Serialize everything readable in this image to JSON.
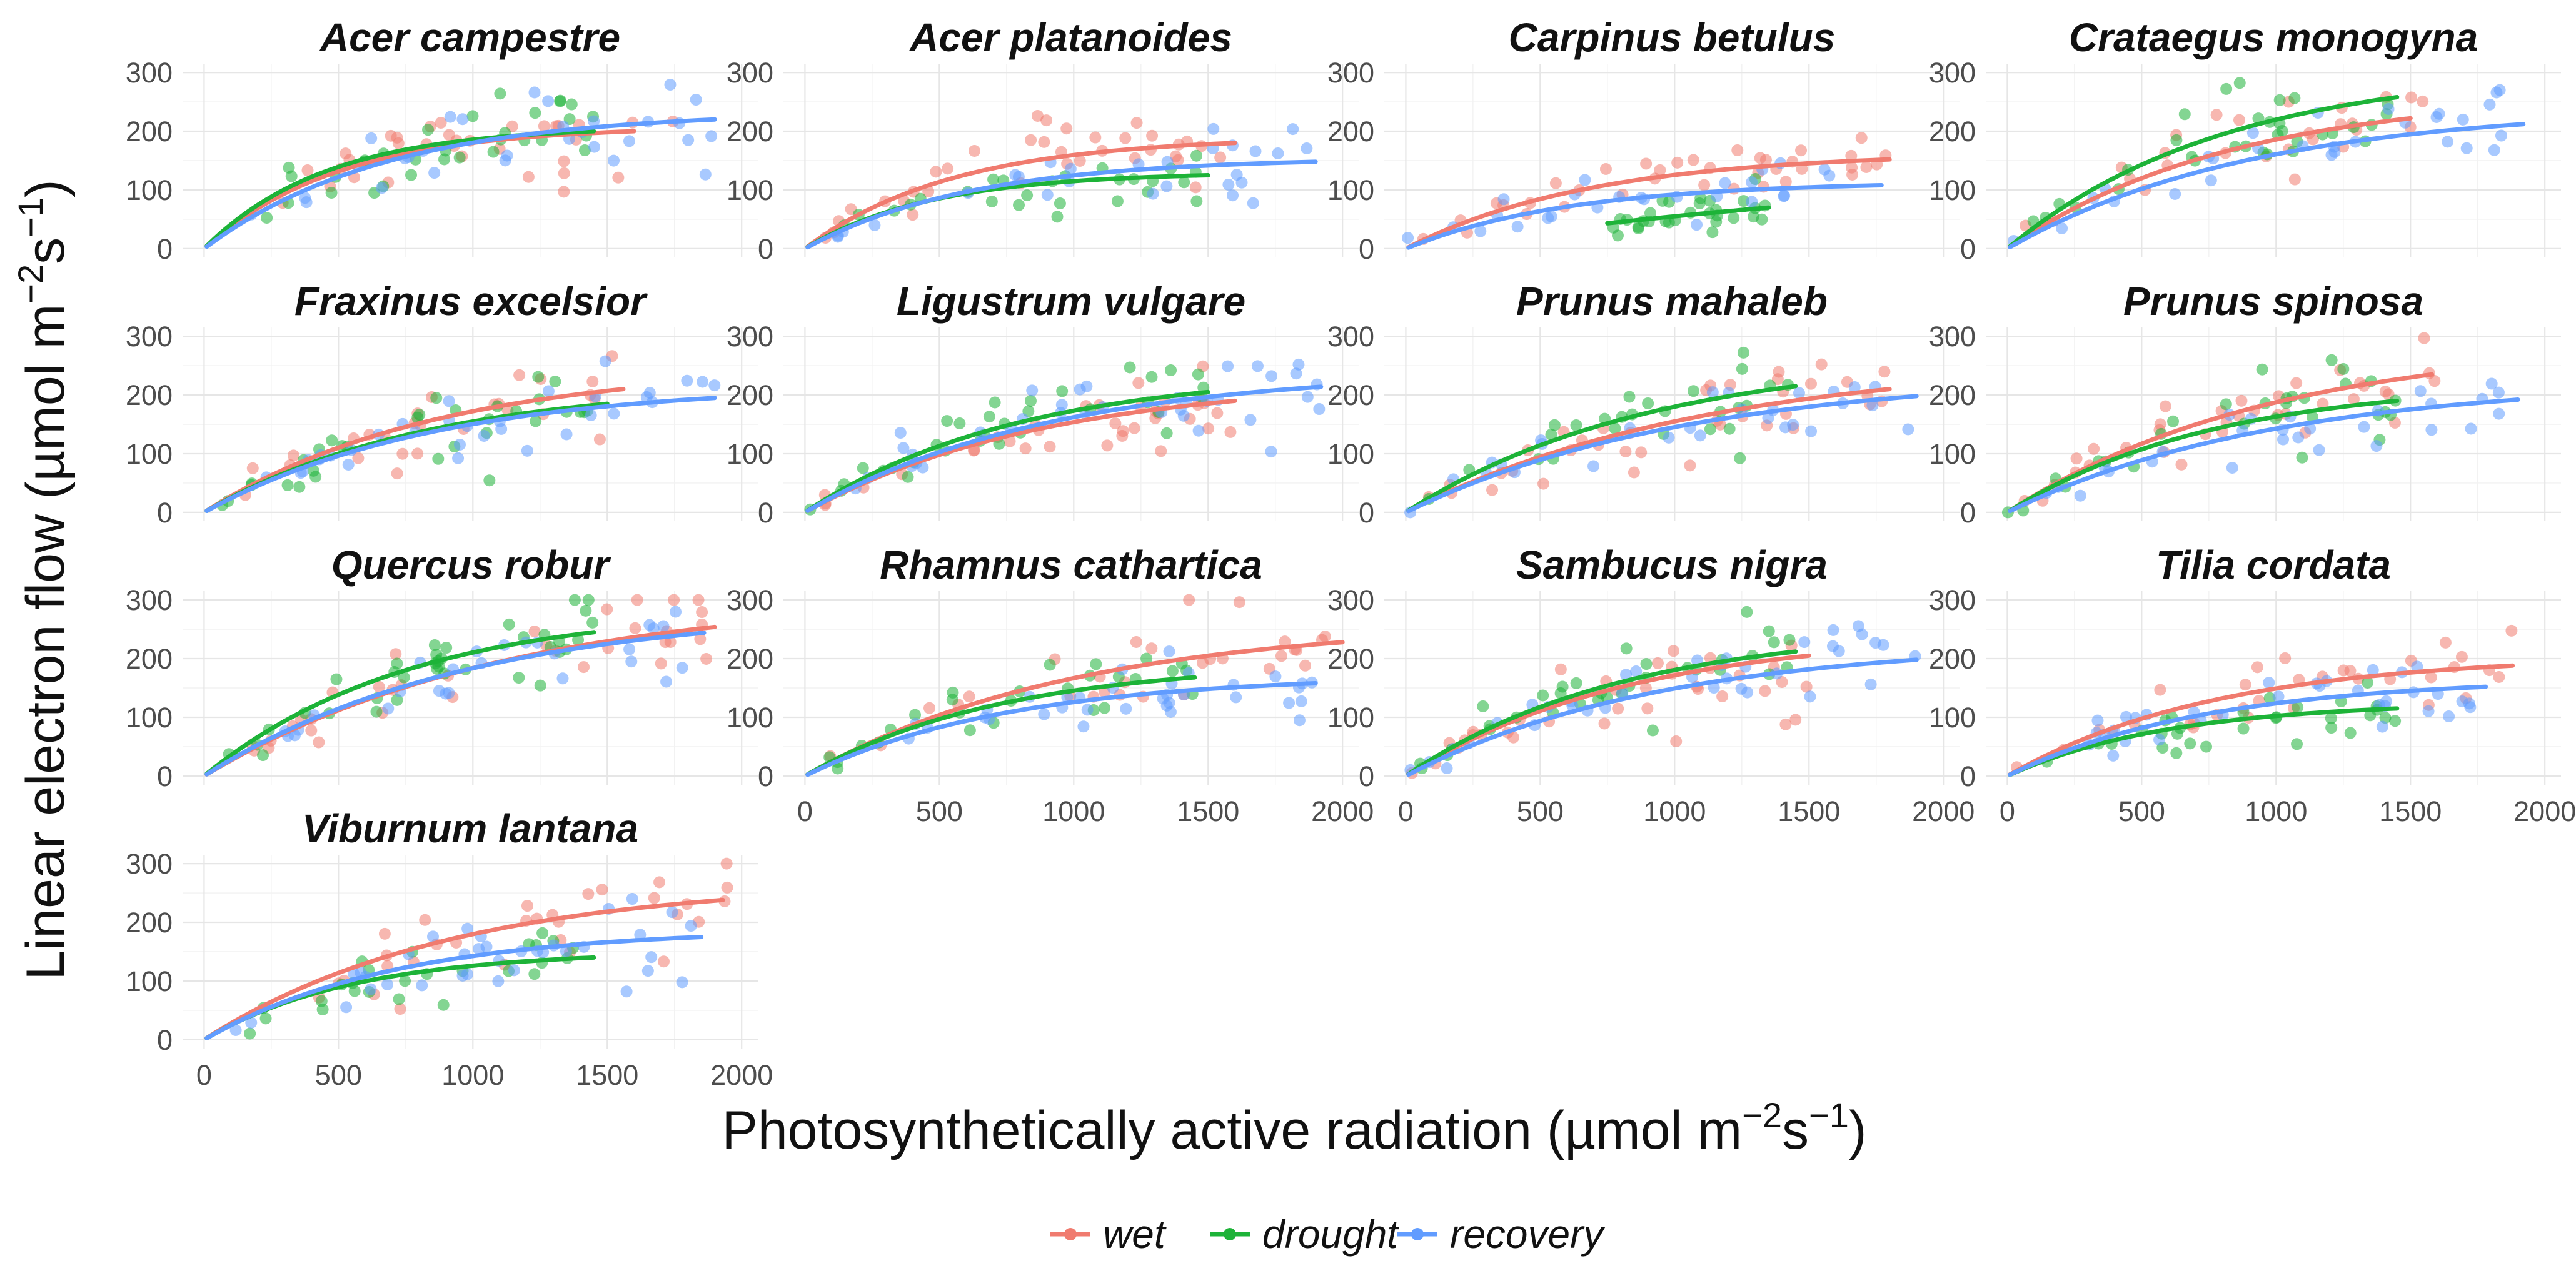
{
  "colors": {
    "wet": "#F07B6F",
    "drought": "#1DB338",
    "recovery": "#619CFF"
  },
  "chart_data": {
    "type": "scatter",
    "subtype": "faceted scatter with fitted light-response curves",
    "facets": [
      "Acer campestre",
      "Acer platanoides",
      "Carpinus betulus",
      "Crataegus monogyna",
      "Fraxinus excelsior",
      "Ligustrum vulgare",
      "Prunus mahaleb",
      "Prunus spinosa",
      "Quercus robur",
      "Rhamnus cathartica",
      "Sambucus nigra",
      "Tilia cordata",
      "Viburnum lantana"
    ],
    "xlabel": "Photosynthetically active radiation (µmol m",
    "xlabel_sup1": "−2",
    "xlabel_mid": "s",
    "xlabel_sup2": "−1",
    "xlabel_end": ")",
    "ylabel": "Linear electron flow (µmol m",
    "ylabel_sup1": "−2",
    "ylabel_mid": "s",
    "ylabel_sup2": "−1",
    "ylabel_end": ")",
    "xlim": [
      -80,
      2060
    ],
    "ylim": [
      -15,
      315
    ],
    "xticks": [
      0,
      500,
      1000,
      1500,
      2000
    ],
    "yticks": [
      0,
      100,
      200,
      300
    ],
    "xtick_labels": [
      "0",
      "500",
      "1000",
      "1500",
      "2000"
    ],
    "ytick_labels": [
      "0",
      "100",
      "200",
      "300"
    ],
    "legend": {
      "position": "bottom",
      "entries": [
        "wet",
        "drought",
        "recovery"
      ]
    },
    "series_curves": {
      "Acer campestre": {
        "wet": [
          200,
          1600,
          3.2
        ],
        "drought": [
          200,
          1450,
          3.2
        ],
        "recovery": [
          220,
          1900,
          2.8
        ]
      },
      "Acer platanoides": {
        "wet": [
          180,
          1600,
          2.9
        ],
        "drought": [
          125,
          1500,
          3.2
        ],
        "recovery": [
          148,
          1900,
          3.1
        ]
      },
      "Carpinus betulus": {
        "wet": [
          152,
          1800,
          2.6
        ],
        "drought": [
          70,
          1350,
          0.5
        ],
        "recovery": [
          108,
          1770,
          2.9
        ]
      },
      "Crataegus monogyna": {
        "wet": [
          222,
          1500,
          1.8
        ],
        "drought": [
          258,
          1450,
          1.8
        ],
        "recovery": [
          212,
          1920,
          2.1
        ]
      },
      "Fraxinus excelsior": {
        "wet": [
          210,
          1560,
          1.8
        ],
        "drought": [
          185,
          1500,
          1.8
        ],
        "recovery": [
          195,
          1900,
          2.2
        ]
      },
      "Ligustrum vulgare": {
        "wet": [
          190,
          1600,
          1.8
        ],
        "drought": [
          205,
          1500,
          1.9
        ],
        "recovery": [
          214,
          1920,
          2.1
        ]
      },
      "Prunus mahaleb": {
        "wet": [
          210,
          1800,
          1.6
        ],
        "drought": [
          215,
          1450,
          1.6
        ],
        "recovery": [
          198,
          1900,
          1.8
        ]
      },
      "Prunus spinosa": {
        "wet": [
          235,
          1580,
          1.6
        ],
        "drought": [
          190,
          1450,
          1.9
        ],
        "recovery": [
          192,
          1900,
          1.9
        ]
      },
      "Quercus robur": {
        "wet": [
          254,
          1900,
          1.7
        ],
        "drought": [
          245,
          1450,
          1.9
        ],
        "recovery": [
          244,
          1860,
          1.9
        ]
      },
      "Rhamnus cathartica": {
        "wet": [
          228,
          2000,
          2.0
        ],
        "drought": [
          168,
          1450,
          2.0
        ],
        "recovery": [
          158,
          1900,
          2.5
        ]
      },
      "Sambucus nigra": {
        "wet": [
          205,
          1500,
          1.8
        ],
        "drought": [
          212,
          1450,
          1.8
        ],
        "recovery": [
          198,
          1900,
          2.0
        ]
      },
      "Tilia cordata": {
        "wet": [
          188,
          1880,
          2.4
        ],
        "drought": [
          115,
          1450,
          2.4
        ],
        "recovery": [
          152,
          1780,
          2.4
        ]
      },
      "Viburnum lantana": {
        "wet": [
          238,
          1930,
          2.1
        ],
        "drought": [
          140,
          1450,
          2.6
        ],
        "recovery": [
          175,
          1850,
          2.6
        ]
      }
    },
    "curve_params_note": "per series: [LEF at end of curve (µmol m-2 s-1), PAR where curve ends, curvature k] with LEF = A(1-exp(-k PAR/xmax))/(1-exp(-k))",
    "scatter_ranges": {
      "Acer campestre": {
        "wet": [
          0,
          1750
        ],
        "drought": [
          0,
          1450
        ],
        "recovery": [
          0,
          1900
        ]
      },
      "Acer platanoides": {
        "wet": [
          0,
          1650
        ],
        "drought": [
          0,
          1500
        ],
        "recovery": [
          0,
          1900
        ]
      },
      "Carpinus betulus": {
        "wet": [
          0,
          1800
        ],
        "drought": [
          750,
          1350
        ],
        "recovery": [
          0,
          1770
        ]
      },
      "Crataegus monogyna": {
        "wet": [
          0,
          1550
        ],
        "drought": [
          0,
          1450
        ],
        "recovery": [
          0,
          1920
        ]
      },
      "Fraxinus excelsior": {
        "wet": [
          0,
          1560
        ],
        "drought": [
          0,
          1500
        ],
        "recovery": [
          0,
          1900
        ]
      },
      "Ligustrum vulgare": {
        "wet": [
          0,
          1600
        ],
        "drought": [
          0,
          1500
        ],
        "recovery": [
          0,
          1920
        ]
      },
      "Prunus mahaleb": {
        "wet": [
          0,
          1800
        ],
        "drought": [
          0,
          1450
        ],
        "recovery": [
          0,
          1900
        ]
      },
      "Prunus spinosa": {
        "wet": [
          0,
          1600
        ],
        "drought": [
          0,
          1450
        ],
        "recovery": [
          0,
          1900
        ]
      },
      "Quercus robur": {
        "wet": [
          0,
          1900
        ],
        "drought": [
          0,
          1450
        ],
        "recovery": [
          0,
          1860
        ]
      },
      "Rhamnus cathartica": {
        "wet": [
          0,
          2000
        ],
        "drought": [
          0,
          1450
        ],
        "recovery": [
          0,
          1900
        ]
      },
      "Sambucus nigra": {
        "wet": [
          0,
          1500
        ],
        "drought": [
          0,
          1450
        ],
        "recovery": [
          0,
          1900
        ]
      },
      "Tilia cordata": {
        "wet": [
          0,
          1880
        ],
        "drought": [
          0,
          1450
        ],
        "recovery": [
          0,
          1780
        ]
      },
      "Viburnum lantana": {
        "wet": [
          0,
          1950
        ],
        "drought": [
          0,
          1450
        ],
        "recovery": [
          0,
          1850
        ]
      }
    }
  }
}
